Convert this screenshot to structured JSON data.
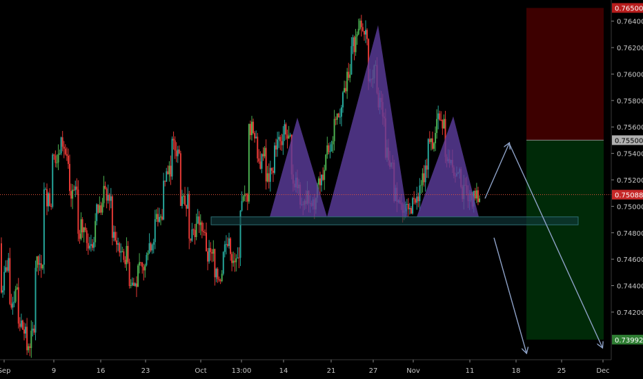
{
  "chart_data": {
    "type": "candlestick",
    "ylim": [
      0.7384,
      0.7656
    ],
    "x_range": [
      "Sep",
      "Dec"
    ],
    "grid": false,
    "colors": {
      "background": "#000000",
      "up": "#26a69a",
      "up_bright": "#4caf50",
      "down": "#e53935",
      "pattern_fill": "#5c3d9e",
      "neckline": "#2e6f74",
      "arrow": "#8ea2c8",
      "stop_zone": "#3d0000",
      "target_zone": "#002a08",
      "current_price_line": "#e5533b"
    },
    "x_ticks": [
      "Sep",
      "9",
      "16",
      "23",
      "Oct",
      "13:00",
      "14",
      "21",
      "27",
      "Nov",
      "11",
      "18",
      "25",
      "Dec"
    ],
    "y_ticks": [
      "0.76400",
      "0.76200",
      "0.76000",
      "0.75800",
      "0.75600",
      "0.75400",
      "0.75200",
      "0.75000",
      "0.74800",
      "0.74600",
      "0.74400",
      "0.74200"
    ],
    "price_labels": [
      {
        "text": "0.76500",
        "value": 0.765,
        "color": "#b71c1c",
        "text_color": "#ffffff"
      },
      {
        "text": "0.75500",
        "value": 0.755,
        "color": "#b0b0b0",
        "text_color": "#000000"
      },
      {
        "text": "0.75088",
        "value": 0.75088,
        "color": "#c62828",
        "text_color": "#ffffff"
      },
      {
        "text": "0.73992",
        "value": 0.73992,
        "color": "#2e7d32",
        "text_color": "#ffffff"
      }
    ],
    "key_price_path": [
      [
        0.7472,
        0.7435
      ],
      [
        0.7465,
        0.742
      ],
      [
        0.7445,
        0.7415
      ],
      [
        0.74,
        0.7392
      ],
      [
        0.741,
        0.7455
      ],
      [
        0.746,
        0.751
      ],
      [
        0.75,
        0.7535
      ],
      [
        0.7545,
        0.7558
      ],
      [
        0.752,
        0.7505
      ],
      [
        0.751,
        0.748
      ],
      [
        0.749,
        0.747
      ],
      [
        0.7475,
        0.7495
      ],
      [
        0.75,
        0.751
      ],
      [
        0.7505,
        0.7475
      ],
      [
        0.747,
        0.746
      ],
      [
        0.7465,
        0.744
      ],
      [
        0.744,
        0.745
      ],
      [
        0.7455,
        0.747
      ],
      [
        0.7475,
        0.749
      ],
      [
        0.7495,
        0.752
      ],
      [
        0.753,
        0.7545
      ],
      [
        0.754,
        0.75
      ],
      [
        0.7505,
        0.748
      ],
      [
        0.7485,
        0.749
      ],
      [
        0.748,
        0.746
      ],
      [
        0.7465,
        0.7445
      ],
      [
        0.745,
        0.747
      ],
      [
        0.747,
        0.7455
      ],
      [
        0.746,
        0.75
      ],
      [
        0.751,
        0.756
      ],
      [
        0.7555,
        0.753
      ],
      [
        0.754,
        0.752
      ],
      [
        0.7525,
        0.7545
      ],
      [
        0.755,
        0.756
      ],
      [
        0.7545,
        0.752
      ],
      [
        0.752,
        0.7505
      ],
      [
        0.7505,
        0.75
      ],
      [
        0.75,
        0.752
      ],
      [
        0.7525,
        0.754
      ],
      [
        0.7545,
        0.756
      ],
      [
        0.757,
        0.759
      ],
      [
        0.76,
        0.762
      ],
      [
        0.763,
        0.7637
      ],
      [
        0.7625,
        0.76
      ],
      [
        0.76,
        0.758
      ],
      [
        0.757,
        0.754
      ],
      [
        0.753,
        0.751
      ],
      [
        0.7505,
        0.7495
      ],
      [
        0.7495,
        0.75
      ],
      [
        0.7505,
        0.752
      ],
      [
        0.753,
        0.7545
      ],
      [
        0.7555,
        0.7565
      ],
      [
        0.756,
        0.754
      ],
      [
        0.7535,
        0.7525
      ],
      [
        0.752,
        0.751
      ],
      [
        0.751,
        0.7506
      ],
      [
        0.7506,
        0.7509
      ]
    ],
    "annotations": {
      "pattern": "head and shoulders",
      "shoulder_left_peak": 0.7567,
      "head_peak": 0.7637,
      "shoulder_right_peak": 0.7568,
      "pattern_base": 0.7492,
      "neckline_top": 0.7492,
      "neckline_bottom": 0.7486,
      "stop_zone": [
        0.755,
        0.765
      ],
      "target_zone": [
        0.73992,
        0.755
      ],
      "current_price": 0.75088
    }
  }
}
